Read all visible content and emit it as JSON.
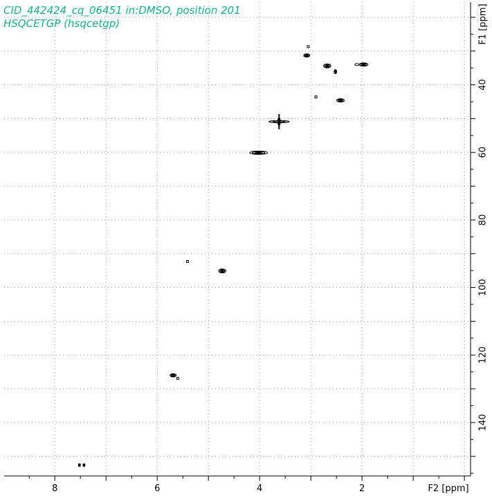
{
  "title_line1": "CID_442424_cq_06451 in:DMSO, position 201",
  "title_line2": "HSQCETGP (hsqcetgp)",
  "colors": {
    "title": "#16b28a",
    "contour": "#000000",
    "grid": "#9a9a9a"
  },
  "chart_data": {
    "type": "scatter",
    "subtype": "2D NMR contour (HSQC)",
    "x_axis": {
      "label": "F2 [ppm]",
      "reversed": true,
      "range": [
        8.99,
        -0.12
      ],
      "major_ticks": [
        8,
        6,
        4,
        2
      ],
      "minor_ticks": [
        9,
        7,
        5,
        3,
        1,
        0
      ],
      "grid_every": 1
    },
    "y_axis": {
      "label": "F1 [ppm]",
      "position": "right",
      "reversed": true,
      "range": [
        15.5,
        155.8
      ],
      "major_ticks": [
        40,
        60,
        80,
        100,
        120,
        140
      ],
      "minor_ticks": [
        20,
        30,
        50,
        70,
        90,
        110,
        130,
        150
      ],
      "grid_every": 10
    },
    "grid": true,
    "peaks": [
      {
        "x": 3.05,
        "y": 28.7,
        "w": 0.04,
        "h": 0.5,
        "shape": "dot"
      },
      {
        "x": 3.08,
        "y": 31.3,
        "w": 0.12,
        "h": 1.0,
        "shape": "blob"
      },
      {
        "x": 2.68,
        "y": 34.4,
        "w": 0.14,
        "h": 1.2,
        "shape": "blob"
      },
      {
        "x": 2.52,
        "y": 36.1,
        "w": 0.05,
        "h": 1.2,
        "shape": "blob"
      },
      {
        "x": 2.1,
        "y": 34.0,
        "w": 0.08,
        "h": 0.6,
        "shape": "ring"
      },
      {
        "x": 1.97,
        "y": 34.0,
        "w": 0.17,
        "h": 1.0,
        "shape": "blob"
      },
      {
        "x": 2.9,
        "y": 43.6,
        "w": 0.04,
        "h": 0.6,
        "shape": "dot"
      },
      {
        "x": 2.42,
        "y": 44.6,
        "w": 0.15,
        "h": 1.0,
        "shape": "blob"
      },
      {
        "x": 3.62,
        "y": 50.9,
        "w": 0.4,
        "h": 0.9,
        "shape": "cross"
      },
      {
        "x": 4.02,
        "y": 60.1,
        "w": 0.35,
        "h": 1.0,
        "shape": "blob"
      },
      {
        "x": 5.41,
        "y": 92.3,
        "w": 0.04,
        "h": 0.6,
        "shape": "dot"
      },
      {
        "x": 4.73,
        "y": 95.1,
        "w": 0.14,
        "h": 1.2,
        "shape": "blob"
      },
      {
        "x": 5.69,
        "y": 126.0,
        "w": 0.12,
        "h": 1.0,
        "shape": "blob"
      },
      {
        "x": 5.6,
        "y": 126.9,
        "w": 0.04,
        "h": 0.6,
        "shape": "dot"
      },
      {
        "x": 7.52,
        "y": 152.6,
        "w": 0.05,
        "h": 0.9,
        "shape": "square"
      },
      {
        "x": 7.43,
        "y": 152.6,
        "w": 0.05,
        "h": 0.9,
        "shape": "square"
      }
    ]
  }
}
